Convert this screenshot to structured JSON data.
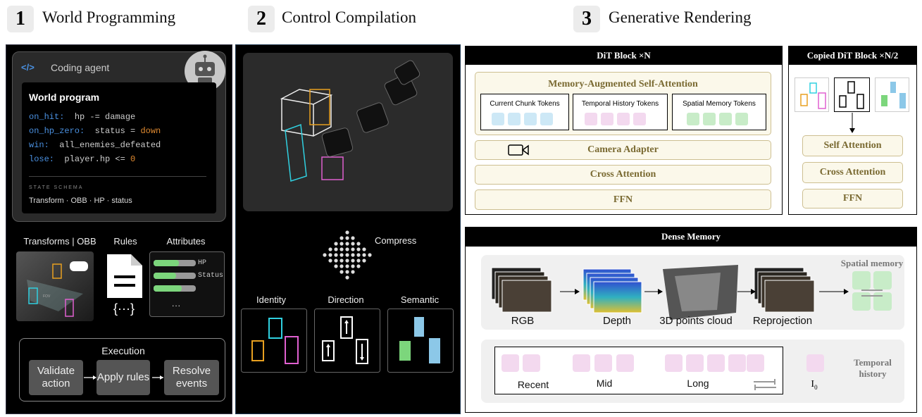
{
  "sections": [
    {
      "number": "1",
      "title": "World Programming"
    },
    {
      "number": "2",
      "title": "Control Compilation"
    },
    {
      "number": "3",
      "title": "Generative Rendering"
    }
  ],
  "world_programming": {
    "agent": {
      "icon": "</>",
      "label": "Coding agent"
    },
    "program": {
      "title": "World program",
      "lines": [
        {
          "key": "on_hit:",
          "code": "hp -= damage"
        },
        {
          "key": "on_hp_zero:",
          "code": "status = ",
          "highlight": "down"
        },
        {
          "key": "win:",
          "code": "all_enemies_defeated"
        },
        {
          "key": "lose:",
          "code": "player.hp <= ",
          "highlight": "0"
        }
      ],
      "schema_label": "STATE SCHEMA",
      "schema": "Transform · OBB · HP · status"
    },
    "components": [
      {
        "label": "Transforms | OBB",
        "note": "FOV"
      },
      {
        "label": "Rules",
        "note": "{···}"
      },
      {
        "label": "Attributes",
        "fields": [
          "HP",
          "Status"
        ],
        "more": "···"
      }
    ],
    "execution": {
      "title": "Execution",
      "steps": [
        "Validate action",
        "Apply rules",
        "Resolve events"
      ]
    }
  },
  "control_compilation": {
    "compress": "Compress",
    "controls": [
      "Identity",
      "Direction",
      "Semantic"
    ]
  },
  "generative_rendering": {
    "dit_block": {
      "title": "DiT Block ×N",
      "memory_attention": "Memory-Augmented Self-Attention",
      "token_groups": [
        "Current Chunk Tokens",
        "Temporal History Tokens",
        "Spatial Memory Tokens"
      ],
      "layers": [
        "Camera Adapter",
        "Cross Attention",
        "FFN"
      ]
    },
    "copied_block": {
      "title": "Copied DiT Block ×N/2",
      "layers": [
        "Self Attention",
        "Cross Attention",
        "FFN"
      ]
    },
    "dense_memory": {
      "title": "Dense Memory",
      "pipeline": [
        "RGB",
        "Depth",
        "3D points cloud",
        "Reprojection"
      ],
      "spatial_label": "Spatial  memory",
      "temporal": {
        "groups": [
          "Recent",
          "Mid",
          "Long"
        ],
        "initial": {
          "label": "I",
          "subscript": "0"
        },
        "label": "Temporal history"
      }
    }
  }
}
